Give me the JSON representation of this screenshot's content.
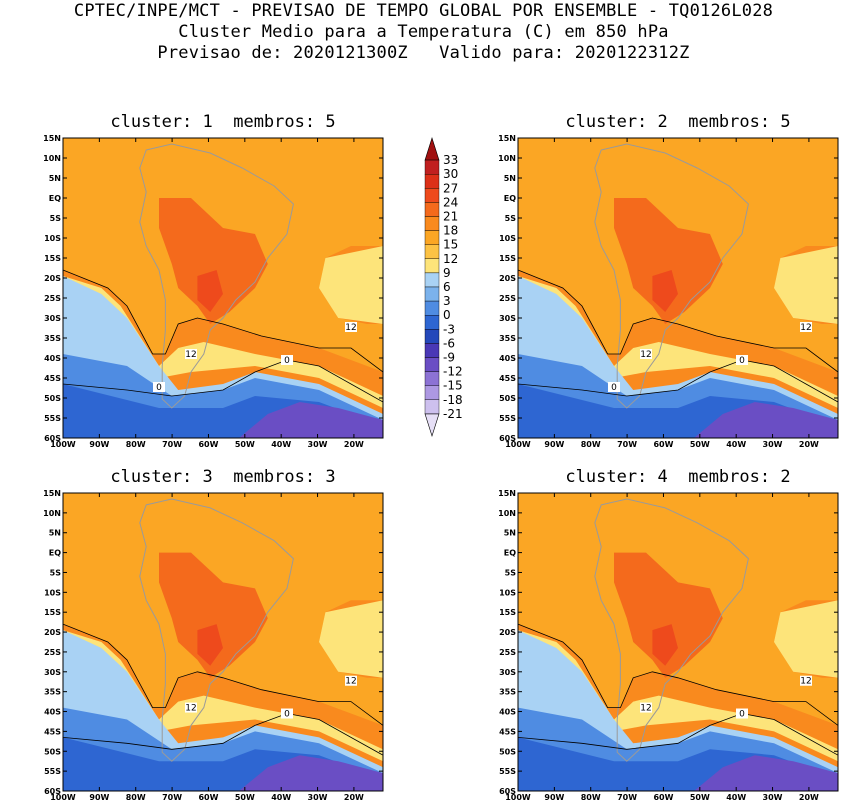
{
  "header": {
    "line1": "CPTEC/INPE/MCT - PREVISAO DE TEMPO GLOBAL POR ENSEMBLE - TQ0126L028",
    "line2": "Cluster Medio para a Temperatura (C) em 850 hPa",
    "line3": "Previsao de: 2020121300Z   Valido para: 2020122312Z"
  },
  "panels": [
    {
      "title": "cluster: 1  membros: 5",
      "contour_labels": [
        "12",
        "12",
        "0",
        "0"
      ]
    },
    {
      "title": "cluster: 2  membros: 5",
      "contour_labels": [
        "12",
        "12",
        "0",
        "0"
      ]
    },
    {
      "title": "cluster: 3  membros: 3",
      "contour_labels": [
        "12",
        "12",
        "0"
      ]
    },
    {
      "title": "cluster: 4  membros: 2",
      "contour_labels": [
        "12",
        "12",
        "0"
      ]
    }
  ],
  "axes": {
    "lat_labels": [
      "15N",
      "10N",
      "5N",
      "EQ",
      "5S",
      "10S",
      "15S",
      "20S",
      "25S",
      "30S",
      "35S",
      "40S",
      "45S",
      "50S",
      "55S",
      "60S"
    ],
    "lon_labels": [
      "100W",
      "90W",
      "80W",
      "70W",
      "60W",
      "50W",
      "40W",
      "30W",
      "20W"
    ]
  },
  "colorbar": {
    "labels": [
      "33",
      "30",
      "27",
      "24",
      "21",
      "18",
      "15",
      "12",
      "9",
      "6",
      "3",
      "0",
      "-3",
      "-6",
      "-9",
      "-12",
      "-15",
      "-18",
      "-21"
    ],
    "colors": [
      "#a01010",
      "#c02020",
      "#dc3018",
      "#ee4a1c",
      "#f46a1c",
      "#f98a1e",
      "#fba624",
      "#fcc244",
      "#fde47a",
      "#a9d2f4",
      "#7bb2ec",
      "#4f8ce2",
      "#2e66d2",
      "#2448ba",
      "#4a38b6",
      "#6a4ec4",
      "#8c72d4",
      "#ad98e2",
      "#cdc0ee",
      "#e6dff6"
    ]
  },
  "colors": {
    "warm_core": "#f46a1c",
    "warm": "#f98a1e",
    "orange": "#fba624",
    "yellow": "#fde47a",
    "light_blue": "#a9d2f4",
    "blue": "#4f8ce2",
    "dark_blue": "#2e66d2",
    "purple": "#6a4ec4"
  }
}
